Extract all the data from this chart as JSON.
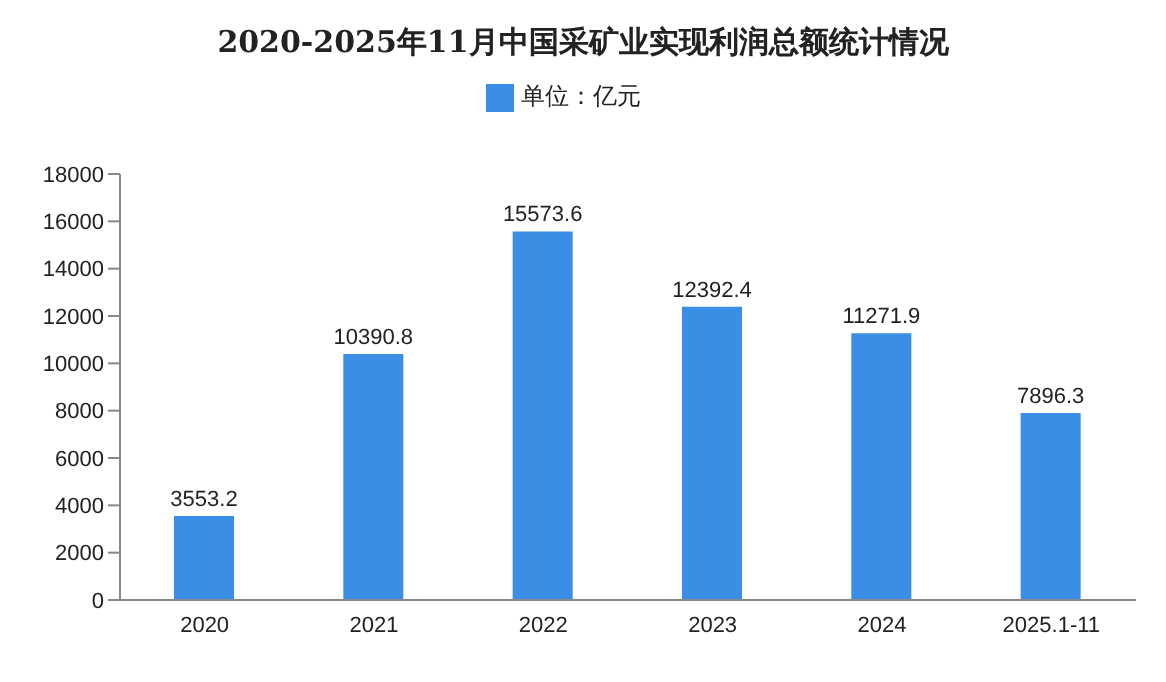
{
  "chart_data": {
    "type": "bar",
    "title": "2020-2025年11月中国采矿业实现利润总额统计情况",
    "categories": [
      "2020",
      "2021",
      "2022",
      "2023",
      "2024",
      "2025.1-11"
    ],
    "series": [
      {
        "name": "单位：亿元",
        "color": "#3a8ee6",
        "values": [
          3553.2,
          10390.8,
          15573.6,
          12392.4,
          11271.9,
          7896.3
        ]
      }
    ],
    "ylim": [
      0,
      18000
    ],
    "yticks": [
      0,
      2000,
      4000,
      6000,
      8000,
      10000,
      12000,
      14000,
      16000,
      18000
    ],
    "data_labels": true,
    "legend": "top",
    "grid": false
  }
}
